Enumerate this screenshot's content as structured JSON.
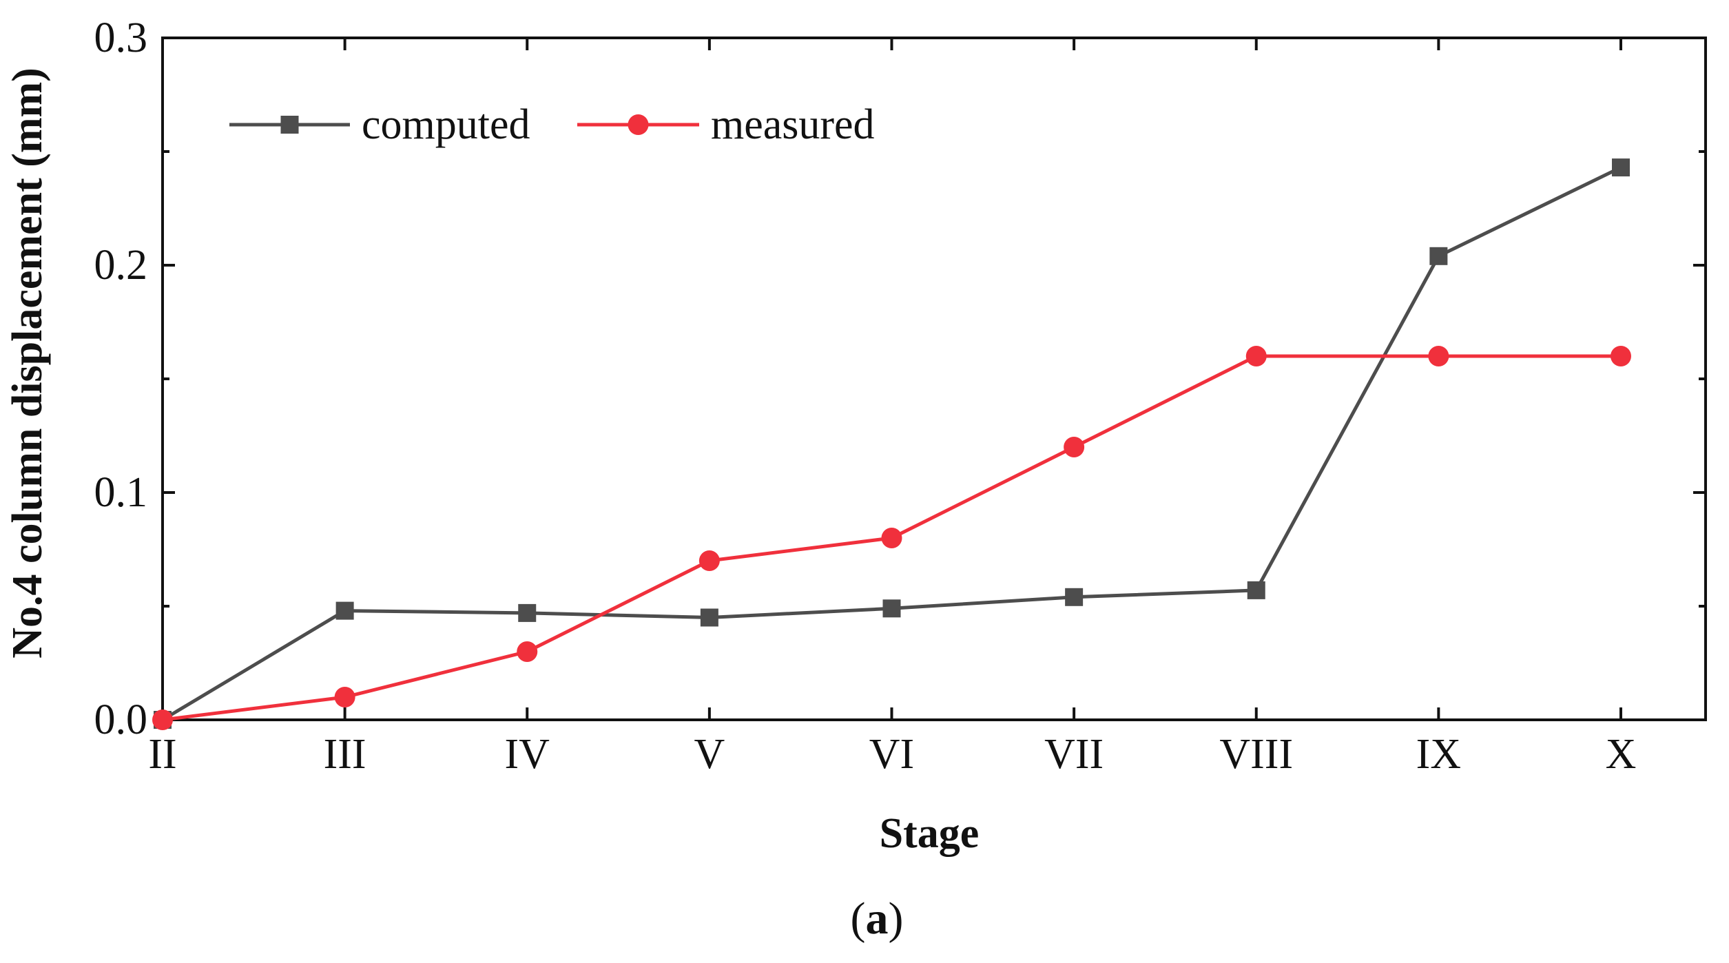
{
  "chart_data": {
    "type": "line",
    "title": "",
    "xlabel": "Stage",
    "ylabel": "No.4 column displacement (mm)",
    "categories": [
      "II",
      "III",
      "IV",
      "V",
      "VI",
      "VII",
      "VIII",
      "IX",
      "X"
    ],
    "ylim": [
      0,
      0.3
    ],
    "yticks": [
      "0.0",
      "0.1",
      "0.2",
      "0.3"
    ],
    "ytick_values": [
      0,
      0.1,
      0.2,
      0.3
    ],
    "grid": false,
    "legend_position": "top-left",
    "series": [
      {
        "name": "computed",
        "color": "#4d4d4d",
        "marker": "square",
        "values": [
          0.0,
          0.048,
          0.047,
          0.045,
          0.049,
          0.054,
          0.057,
          0.204,
          0.243
        ]
      },
      {
        "name": "measured",
        "color": "#f0303c",
        "marker": "circle",
        "values": [
          0.0,
          0.01,
          0.03,
          0.07,
          0.08,
          0.12,
          0.16,
          0.16,
          0.16
        ]
      }
    ]
  },
  "caption": {
    "open": "(",
    "letter": "a",
    "close": ")"
  }
}
